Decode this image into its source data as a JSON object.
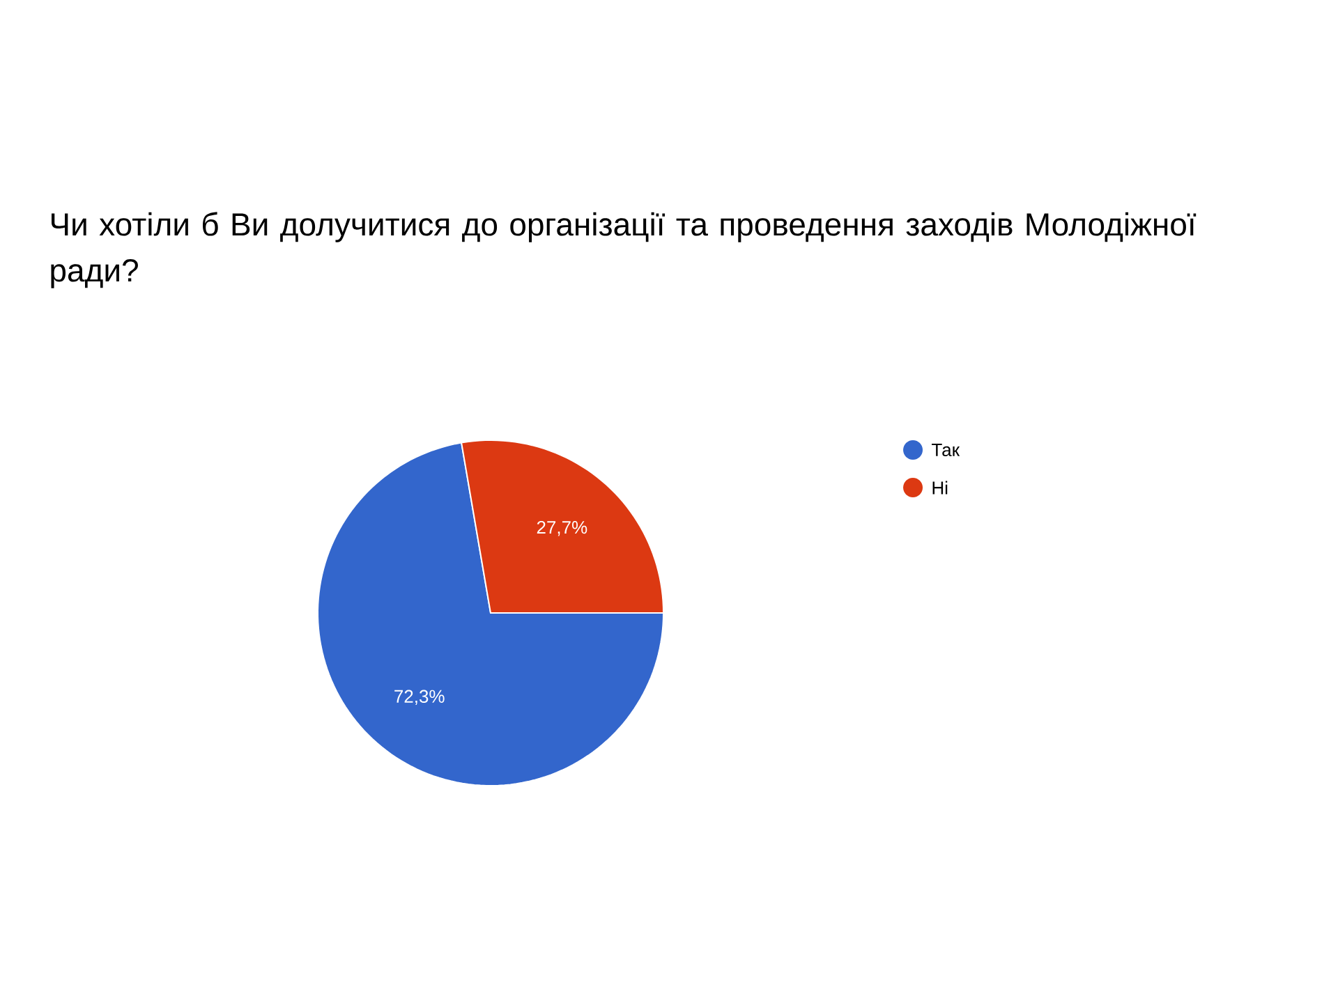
{
  "chart_data": {
    "type": "pie",
    "title": "Чи хотіли б Ви долучитися до організації та проведення заходів Молодіжної ради?",
    "categories": [
      "Так",
      "Ні"
    ],
    "values": [
      72.3,
      27.7
    ],
    "colors": [
      "#3366cc",
      "#dc3912"
    ],
    "value_labels": [
      "72,3%",
      "27,7%"
    ],
    "legend": "right"
  }
}
